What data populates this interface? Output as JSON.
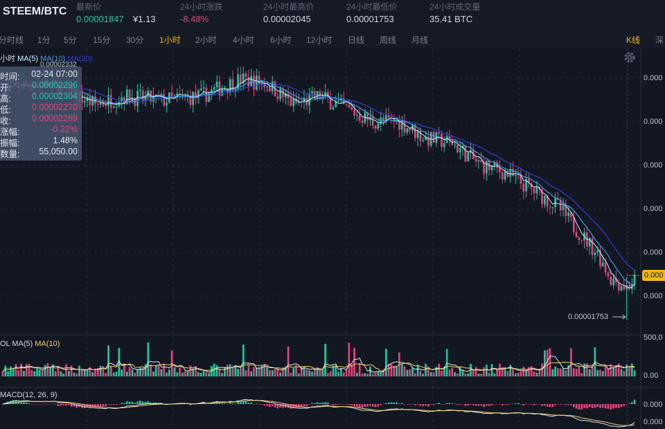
{
  "header": {
    "pair": "STEEM/BTC",
    "stats": [
      {
        "label": "最新价",
        "value": "0.00001847",
        "value2": "¥1.13",
        "tone": "green"
      },
      {
        "label": "24小时涨跌",
        "value": "-8.48%",
        "tone": "pink"
      },
      {
        "label": "24小时最高价",
        "value": "0.00002045",
        "tone": "plain"
      },
      {
        "label": "24小时最低价",
        "value": "0.00001753",
        "tone": "plain"
      },
      {
        "label": "24小时成交量",
        "value": "35.41 BTC",
        "tone": "plain"
      }
    ]
  },
  "tabs": {
    "items": [
      "分时线",
      "1分",
      "5分",
      "15分",
      "30分",
      "1小时",
      "2小时",
      "4小时",
      "6小时",
      "12小时",
      "日线",
      "周线",
      "月线"
    ],
    "active": "1小时",
    "kline": "K线",
    "depth": "深"
  },
  "legend": {
    "period": "小时",
    "ma5": "MA(5)",
    "ma10": "MA(10)",
    "ma20": "MA(20)",
    "top_hint": "0.00002332",
    "vol": "OL",
    "vol_ma5": "MA(5)",
    "vol_ma10": "MA(10)",
    "macd": "MACD(12, 26, 9)"
  },
  "tooltip": {
    "rows": [
      {
        "k": "时间:",
        "v": "02-24 07:00",
        "tone": "plain"
      },
      {
        "k": "开:",
        "v": "0.00002296",
        "tone": "green"
      },
      {
        "k": "高:",
        "v": "0.00002304",
        "tone": "green"
      },
      {
        "k": "低:",
        "v": "0.00002270",
        "tone": "pink"
      },
      {
        "k": "收:",
        "v": "0.00002289",
        "tone": "pink"
      },
      {
        "k": "涨幅:",
        "v": "-0.22%",
        "tone": "pink"
      },
      {
        "k": "振幅:",
        "v": "1.48%",
        "tone": "plain"
      },
      {
        "k": "数量:",
        "v": "55,050.00",
        "tone": "plain"
      }
    ]
  },
  "axis": {
    "price_labels": [
      "0.000",
      "0.000",
      "0.000",
      "0.000",
      "0.000",
      "0.000"
    ],
    "current_price_tag": "0.000",
    "low_marker": "0.00001753",
    "vol_labels": [
      "500,0",
      "0.00"
    ],
    "macd_labels": [
      "0.000",
      "0.000"
    ]
  },
  "colors": {
    "up": "#1fc7a0",
    "down": "#e0457b",
    "ma5": "#c9f1ff",
    "ma10": "#3aa0e8",
    "ma20": "#2d3fd3",
    "accent": "#f0b90b"
  },
  "chart_data": {
    "type": "candlestick",
    "price_anchors": [
      [
        0,
        2.3e-05
      ],
      [
        15,
        2.31e-05
      ],
      [
        25,
        2.29e-05
      ],
      [
        35,
        2.26e-05
      ],
      [
        45,
        2.28e-05
      ],
      [
        60,
        2.27e-05
      ],
      [
        75,
        2.28e-05
      ],
      [
        90,
        2.32e-05
      ],
      [
        100,
        2.31e-05
      ],
      [
        110,
        2.26e-05
      ],
      [
        120,
        2.28e-05
      ],
      [
        130,
        2.25e-05
      ],
      [
        140,
        2.22e-05
      ],
      [
        150,
        2.22e-05
      ],
      [
        160,
        2.18e-05
      ],
      [
        170,
        2.17e-05
      ],
      [
        180,
        2.12e-05
      ],
      [
        190,
        2.1e-05
      ],
      [
        200,
        2.06e-05
      ],
      [
        210,
        2.02e-05
      ],
      [
        215,
        1.98e-05
      ],
      [
        225,
        1.91e-05
      ],
      [
        230,
        1.85e-05
      ],
      [
        236,
        1.83e-05
      ],
      [
        240,
        1.85e-05
      ]
    ],
    "price_range": [
      1.74e-05,
      2.36e-05
    ],
    "low_marker_value": 1.753e-05,
    "candle_count": 240
  }
}
